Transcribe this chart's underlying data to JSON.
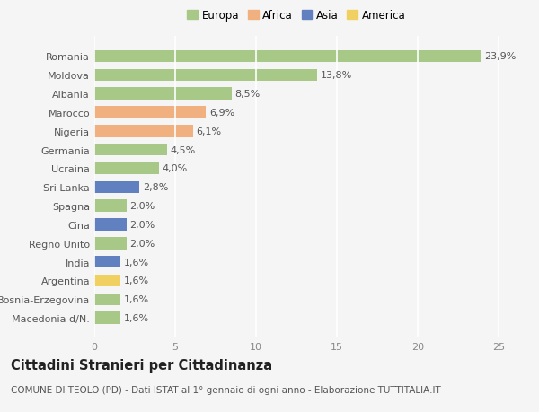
{
  "categories": [
    "Romania",
    "Moldova",
    "Albania",
    "Marocco",
    "Nigeria",
    "Germania",
    "Ucraina",
    "Sri Lanka",
    "Spagna",
    "Cina",
    "Regno Unito",
    "India",
    "Argentina",
    "Bosnia-Erzegovina",
    "Macedonia d/N."
  ],
  "values": [
    23.9,
    13.8,
    8.5,
    6.9,
    6.1,
    4.5,
    4.0,
    2.8,
    2.0,
    2.0,
    2.0,
    1.6,
    1.6,
    1.6,
    1.6
  ],
  "labels": [
    "23,9%",
    "13,8%",
    "8,5%",
    "6,9%",
    "6,1%",
    "4,5%",
    "4,0%",
    "2,8%",
    "2,0%",
    "2,0%",
    "2,0%",
    "1,6%",
    "1,6%",
    "1,6%",
    "1,6%"
  ],
  "continents": [
    "Europa",
    "Europa",
    "Europa",
    "Africa",
    "Africa",
    "Europa",
    "Europa",
    "Asia",
    "Europa",
    "Asia",
    "Europa",
    "Asia",
    "America",
    "Europa",
    "Europa"
  ],
  "colors": {
    "Europa": "#a8c888",
    "Africa": "#f0b080",
    "Asia": "#6080c0",
    "America": "#f0d060"
  },
  "legend_order": [
    "Europa",
    "Africa",
    "Asia",
    "America"
  ],
  "xlim": [
    0,
    25
  ],
  "xticks": [
    0,
    5,
    10,
    15,
    20,
    25
  ],
  "title": "Cittadini Stranieri per Cittadinanza",
  "subtitle": "COMUNE DI TEOLO (PD) - Dati ISTAT al 1° gennaio di ogni anno - Elaborazione TUTTITALIA.IT",
  "background_color": "#f5f5f5",
  "grid_color": "#ffffff",
  "bar_height": 0.65,
  "label_fontsize": 8,
  "tick_fontsize": 8,
  "title_fontsize": 10.5,
  "subtitle_fontsize": 7.5
}
